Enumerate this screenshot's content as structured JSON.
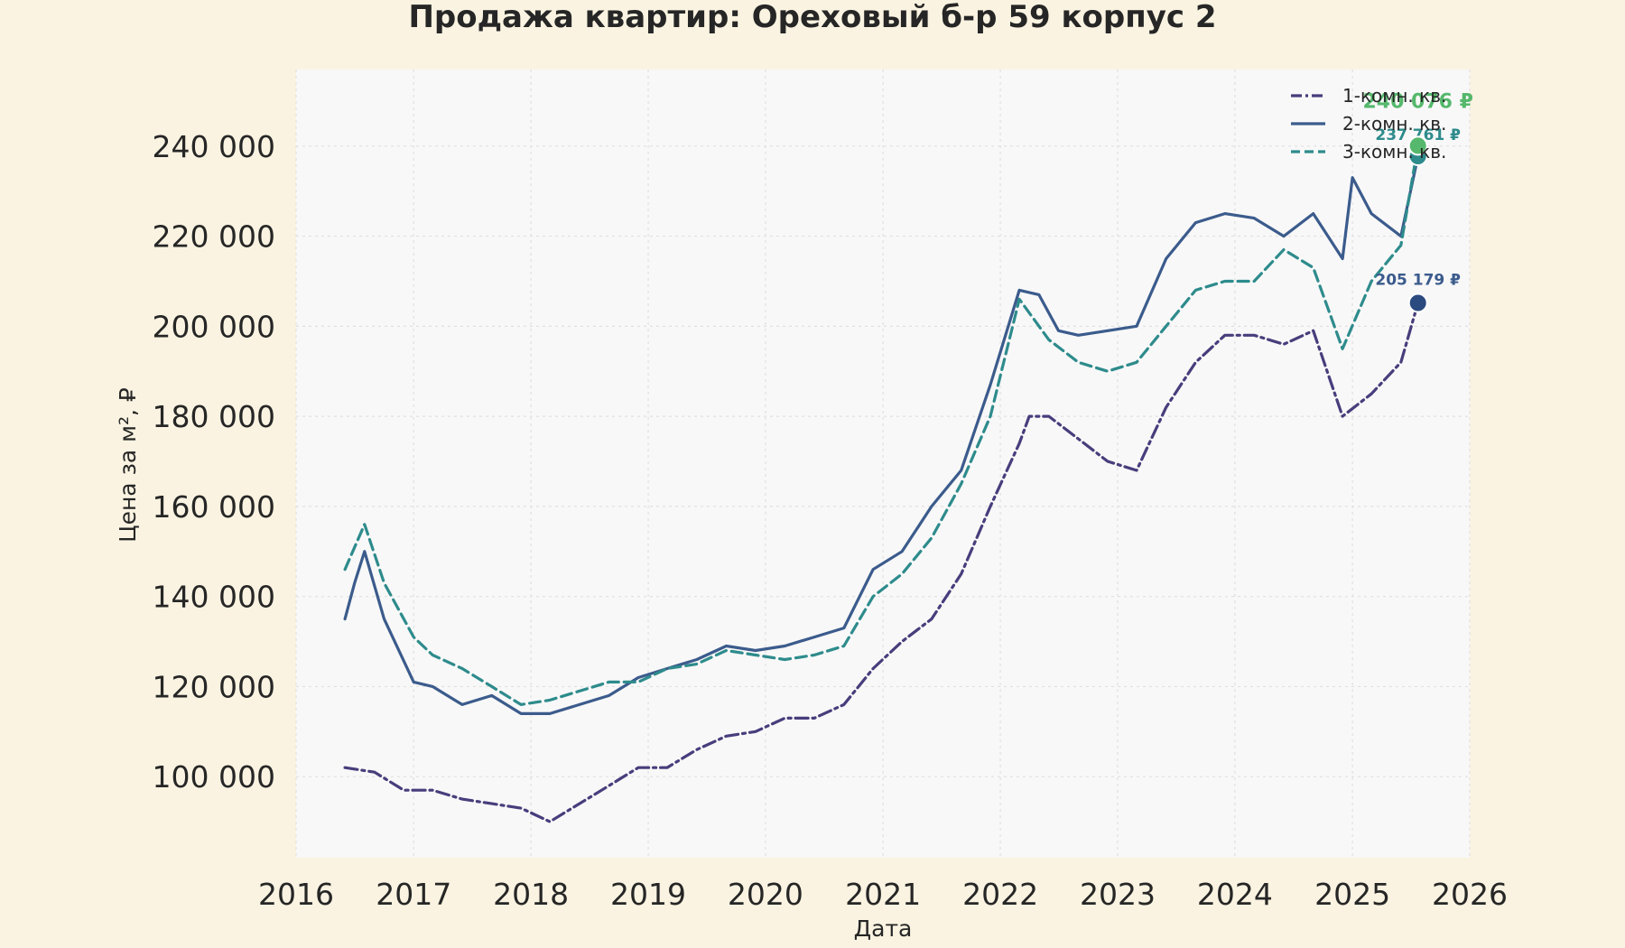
{
  "chart_data": {
    "type": "line",
    "title": "Продажа квартир: Ореховый б-р 59 корпус 2",
    "xlabel": "Дата",
    "ylabel": "Цена за м², ₽",
    "xlim": [
      "2016-01-01",
      "2026-01-01"
    ],
    "ylim": [
      82000,
      257000
    ],
    "x_ticks": [
      {
        "date": "2016-01-01",
        "label": "2016"
      },
      {
        "date": "2017-01-01",
        "label": "2017"
      },
      {
        "date": "2018-01-01",
        "label": "2018"
      },
      {
        "date": "2019-01-01",
        "label": "2019"
      },
      {
        "date": "2020-01-01",
        "label": "2020"
      },
      {
        "date": "2021-01-01",
        "label": "2021"
      },
      {
        "date": "2022-01-01",
        "label": "2022"
      },
      {
        "date": "2023-01-01",
        "label": "2023"
      },
      {
        "date": "2024-01-01",
        "label": "2024"
      },
      {
        "date": "2025-01-01",
        "label": "2025"
      },
      {
        "date": "2026-01-01",
        "label": "2026"
      }
    ],
    "y_ticks": [
      {
        "value": 100000,
        "label": "100 000"
      },
      {
        "value": 120000,
        "label": "120 000"
      },
      {
        "value": 140000,
        "label": "140 000"
      },
      {
        "value": 160000,
        "label": "160 000"
      },
      {
        "value": 180000,
        "label": "180 000"
      },
      {
        "value": 200000,
        "label": "200 000"
      },
      {
        "value": 220000,
        "label": "220 000"
      },
      {
        "value": 240000,
        "label": "240 000"
      }
    ],
    "grid": true,
    "legend_position": "top-right",
    "series": [
      {
        "name": "1-комн. кв.",
        "color": "#483d7c",
        "dash": "dashdot",
        "points": [
          [
            "2016-06-01",
            102000
          ],
          [
            "2016-09-01",
            101000
          ],
          [
            "2016-12-01",
            97000
          ],
          [
            "2017-03-01",
            97000
          ],
          [
            "2017-06-01",
            95000
          ],
          [
            "2017-09-01",
            94000
          ],
          [
            "2017-12-01",
            93000
          ],
          [
            "2018-03-01",
            90000
          ],
          [
            "2018-06-01",
            94000
          ],
          [
            "2018-09-01",
            98000
          ],
          [
            "2018-12-01",
            102000
          ],
          [
            "2019-03-01",
            102000
          ],
          [
            "2019-06-01",
            106000
          ],
          [
            "2019-09-01",
            109000
          ],
          [
            "2019-12-01",
            110000
          ],
          [
            "2020-03-01",
            113000
          ],
          [
            "2020-06-01",
            113000
          ],
          [
            "2020-09-01",
            116000
          ],
          [
            "2020-12-01",
            124000
          ],
          [
            "2021-03-01",
            130000
          ],
          [
            "2021-06-01",
            135000
          ],
          [
            "2021-09-01",
            145000
          ],
          [
            "2021-12-01",
            160000
          ],
          [
            "2022-03-01",
            174000
          ],
          [
            "2022-04-01",
            180000
          ],
          [
            "2022-06-01",
            180000
          ],
          [
            "2022-09-01",
            175000
          ],
          [
            "2022-12-01",
            170000
          ],
          [
            "2023-03-01",
            168000
          ],
          [
            "2023-06-01",
            182000
          ],
          [
            "2023-09-01",
            192000
          ],
          [
            "2023-12-01",
            198000
          ],
          [
            "2024-03-01",
            198000
          ],
          [
            "2024-06-01",
            196000
          ],
          [
            "2024-09-01",
            199000
          ],
          [
            "2024-12-01",
            180000
          ],
          [
            "2025-03-01",
            185000
          ],
          [
            "2025-06-01",
            192000
          ],
          [
            "2025-07-24",
            205179
          ]
        ]
      },
      {
        "name": "2-комн. кв.",
        "color": "#3b5b8c",
        "dash": "solid",
        "points": [
          [
            "2016-06-01",
            135000
          ],
          [
            "2016-07-01",
            143000
          ],
          [
            "2016-08-01",
            150000
          ],
          [
            "2016-10-01",
            135000
          ],
          [
            "2017-01-01",
            121000
          ],
          [
            "2017-03-01",
            120000
          ],
          [
            "2017-06-01",
            116000
          ],
          [
            "2017-09-01",
            118000
          ],
          [
            "2017-12-01",
            114000
          ],
          [
            "2018-03-01",
            114000
          ],
          [
            "2018-06-01",
            116000
          ],
          [
            "2018-09-01",
            118000
          ],
          [
            "2018-12-01",
            122000
          ],
          [
            "2019-03-01",
            124000
          ],
          [
            "2019-06-01",
            126000
          ],
          [
            "2019-09-01",
            129000
          ],
          [
            "2019-12-01",
            128000
          ],
          [
            "2020-03-01",
            129000
          ],
          [
            "2020-06-01",
            131000
          ],
          [
            "2020-09-01",
            133000
          ],
          [
            "2020-12-01",
            146000
          ],
          [
            "2021-03-01",
            150000
          ],
          [
            "2021-06-01",
            160000
          ],
          [
            "2021-09-01",
            168000
          ],
          [
            "2021-12-01",
            187000
          ],
          [
            "2022-03-01",
            208000
          ],
          [
            "2022-05-01",
            207000
          ],
          [
            "2022-07-01",
            199000
          ],
          [
            "2022-09-01",
            198000
          ],
          [
            "2022-12-01",
            199000
          ],
          [
            "2023-03-01",
            200000
          ],
          [
            "2023-06-01",
            215000
          ],
          [
            "2023-09-01",
            223000
          ],
          [
            "2023-12-01",
            225000
          ],
          [
            "2024-03-01",
            224000
          ],
          [
            "2024-06-01",
            220000
          ],
          [
            "2024-09-01",
            225000
          ],
          [
            "2024-12-01",
            215000
          ],
          [
            "2025-01-01",
            233000
          ],
          [
            "2025-03-01",
            225000
          ],
          [
            "2025-06-01",
            220000
          ],
          [
            "2025-07-24",
            237761
          ]
        ]
      },
      {
        "name": "3-комн. кв.",
        "color": "#2e8b8c",
        "dash": "dashed",
        "points": [
          [
            "2016-06-01",
            146000
          ],
          [
            "2016-08-01",
            156000
          ],
          [
            "2016-10-01",
            143000
          ],
          [
            "2017-01-01",
            131000
          ],
          [
            "2017-03-01",
            127000
          ],
          [
            "2017-06-01",
            124000
          ],
          [
            "2017-09-01",
            120000
          ],
          [
            "2017-12-01",
            116000
          ],
          [
            "2018-03-01",
            117000
          ],
          [
            "2018-06-01",
            119000
          ],
          [
            "2018-09-01",
            121000
          ],
          [
            "2018-12-01",
            121000
          ],
          [
            "2019-03-01",
            124000
          ],
          [
            "2019-06-01",
            125000
          ],
          [
            "2019-09-01",
            128000
          ],
          [
            "2019-12-01",
            127000
          ],
          [
            "2020-03-01",
            126000
          ],
          [
            "2020-06-01",
            127000
          ],
          [
            "2020-09-01",
            129000
          ],
          [
            "2020-12-01",
            140000
          ],
          [
            "2021-03-01",
            145000
          ],
          [
            "2021-06-01",
            153000
          ],
          [
            "2021-09-01",
            165000
          ],
          [
            "2021-12-01",
            180000
          ],
          [
            "2022-03-01",
            206000
          ],
          [
            "2022-06-01",
            197000
          ],
          [
            "2022-09-01",
            192000
          ],
          [
            "2022-12-01",
            190000
          ],
          [
            "2023-03-01",
            192000
          ],
          [
            "2023-06-01",
            200000
          ],
          [
            "2023-09-01",
            208000
          ],
          [
            "2023-12-01",
            210000
          ],
          [
            "2024-03-01",
            210000
          ],
          [
            "2024-06-01",
            217000
          ],
          [
            "2024-09-01",
            213000
          ],
          [
            "2024-12-01",
            195000
          ],
          [
            "2025-03-01",
            210000
          ],
          [
            "2025-06-01",
            218000
          ],
          [
            "2025-07-24",
            240076
          ]
        ]
      }
    ],
    "annotations": [
      {
        "text": "205 179 ₽",
        "x": "2025-07-24",
        "y": 205179,
        "color": "#3b5b8c",
        "dot_color": "#2b4a80"
      },
      {
        "text": "237 761 ₽",
        "x": "2025-07-24",
        "y": 237761,
        "color": "#2e8b8c",
        "dot_color": "#2e8b8c"
      },
      {
        "text": "240 076 ₽",
        "x": "2025-07-24",
        "y": 240076,
        "color": "#55b86c",
        "dot_color": "#55b86c"
      }
    ]
  }
}
